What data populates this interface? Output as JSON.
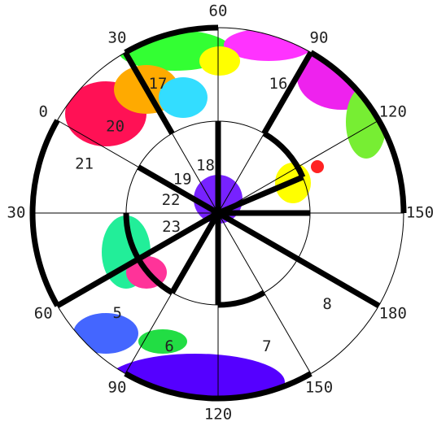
{
  "dial_labels": [
    "60",
    "90",
    "120",
    "150",
    "180",
    "150",
    "120",
    "90",
    "60",
    "30",
    "0",
    "30"
  ],
  "region_labels": [
    {
      "text": "17",
      "angle": 335,
      "r": 175
    },
    {
      "text": "16",
      "angle": 25,
      "r": 175
    },
    {
      "text": "20",
      "angle": 310,
      "r": 165
    },
    {
      "text": "21",
      "angle": 290,
      "r": 175
    },
    {
      "text": "18",
      "angle": 345,
      "r": 60
    },
    {
      "text": "19",
      "angle": 313,
      "r": 60
    },
    {
      "text": "22",
      "angle": 285,
      "r": 60
    },
    {
      "text": "23",
      "angle": 253,
      "r": 60
    },
    {
      "text": "5",
      "angle": 225,
      "r": 175
    },
    {
      "text": "6",
      "angle": 200,
      "r": 175
    },
    {
      "text": "7",
      "angle": 160,
      "r": 175
    },
    {
      "text": "8",
      "angle": 130,
      "r": 175
    }
  ]
}
